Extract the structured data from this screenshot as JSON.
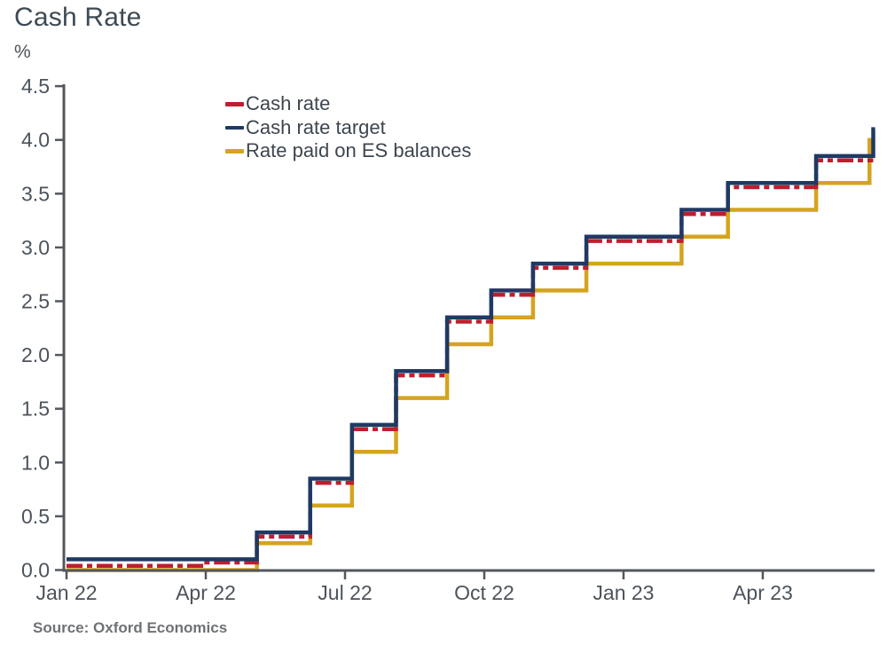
{
  "chart_data": {
    "type": "line",
    "subtype": "step",
    "title": "Cash Rate",
    "ylabel": "%",
    "xlabel": "",
    "ylim": [
      0,
      4.5
    ],
    "y_tick_step": 0.5,
    "y_tick_labels": [
      "0.0",
      "0.5",
      "1.0",
      "1.5",
      "2.0",
      "2.5",
      "3.0",
      "3.5",
      "4.0",
      "4.5"
    ],
    "x_domain_months": [
      0,
      17.42
    ],
    "x_ticks": [
      {
        "label": "Jan 22",
        "month": 0
      },
      {
        "label": "Apr 22",
        "month": 3
      },
      {
        "label": "Jul 22",
        "month": 6
      },
      {
        "label": "Oct 22",
        "month": 9
      },
      {
        "label": "Jan 23",
        "month": 12
      },
      {
        "label": "Apr 23",
        "month": 15
      }
    ],
    "grid": false,
    "legend_position": "top-left-inside",
    "source": "Source: Oxford Economics",
    "axis_color": "#53575d",
    "series": [
      {
        "name": "Cash rate",
        "color": "#bf1e2e",
        "style": "dash-dot",
        "end_month": 17.38,
        "points": [
          [
            0,
            0.04
          ],
          [
            2.9,
            0.07
          ],
          [
            4.1,
            0.31
          ],
          [
            5.25,
            0.81
          ],
          [
            6.15,
            1.31
          ],
          [
            7.1,
            1.81
          ],
          [
            8.2,
            2.31
          ],
          [
            9.15,
            2.56
          ],
          [
            10.05,
            2.81
          ],
          [
            11.2,
            3.06
          ],
          [
            13.25,
            3.31
          ],
          [
            14.25,
            3.56
          ],
          [
            16.15,
            3.81
          ]
        ]
      },
      {
        "name": "Cash rate target",
        "color": "#1e3a64",
        "style": "solid",
        "end_month": 17.42,
        "points": [
          [
            0,
            0.1
          ],
          [
            4.1,
            0.35
          ],
          [
            5.25,
            0.85
          ],
          [
            6.15,
            1.35
          ],
          [
            7.1,
            1.85
          ],
          [
            8.2,
            2.35
          ],
          [
            9.15,
            2.6
          ],
          [
            10.05,
            2.85
          ],
          [
            11.2,
            3.1
          ],
          [
            13.25,
            3.35
          ],
          [
            14.25,
            3.6
          ],
          [
            16.15,
            3.85
          ],
          [
            17.38,
            4.1
          ]
        ]
      },
      {
        "name": "Rate paid on ES balances",
        "color": "#d5a41e",
        "style": "solid",
        "end_month": 17.42,
        "points": [
          [
            0,
            0.0
          ],
          [
            4.1,
            0.25
          ],
          [
            5.25,
            0.6
          ],
          [
            6.15,
            1.1
          ],
          [
            7.1,
            1.6
          ],
          [
            8.2,
            2.1
          ],
          [
            9.15,
            2.35
          ],
          [
            10.05,
            2.6
          ],
          [
            11.2,
            2.85
          ],
          [
            13.25,
            3.1
          ],
          [
            14.25,
            3.35
          ],
          [
            16.15,
            3.6
          ],
          [
            17.3,
            4.0
          ]
        ]
      }
    ]
  }
}
